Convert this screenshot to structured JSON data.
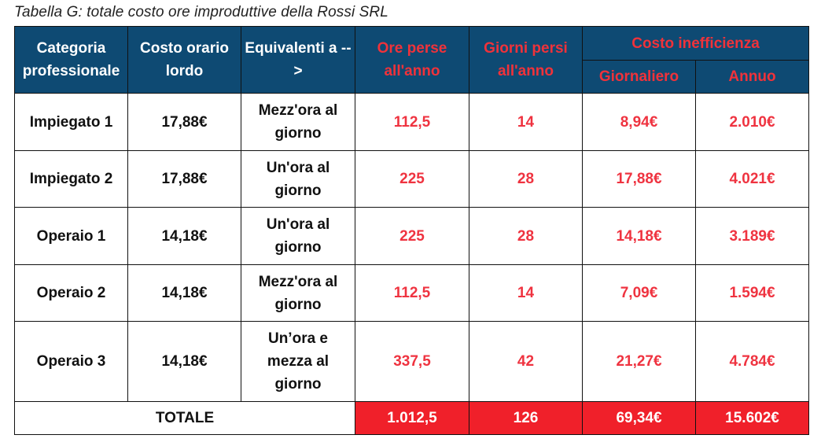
{
  "caption": "Tabella G: totale costo ore improduttive della Rossi SRL",
  "headers": {
    "categoria": "Categoria professionale",
    "costo_orario": "Costo orario lordo",
    "equivalenti": "Equivalenti a -->",
    "ore_perse": "Ore perse all'anno",
    "giorni_persi": "Giorni persi all'anno",
    "costo_inefficienza": "Costo inefficienza",
    "giornaliero": "Giornaliero",
    "annuo": "Annuo"
  },
  "rows": [
    {
      "categoria": "Impiegato 1",
      "costo_orario": "17,88€",
      "equivalenti": "Mezz'ora al giorno",
      "ore_perse": "112,5",
      "giorni_persi": "14",
      "giornaliero": "8,94€",
      "annuo": "2.010€"
    },
    {
      "categoria": "Impiegato 2",
      "costo_orario": "17,88€",
      "equivalenti": "Un'ora al giorno",
      "ore_perse": "225",
      "giorni_persi": "28",
      "giornaliero": "17,88€",
      "annuo": "4.021€"
    },
    {
      "categoria": "Operaio 1",
      "costo_orario": "14,18€",
      "equivalenti": "Un'ora al giorno",
      "ore_perse": "225",
      "giorni_persi": "28",
      "giornaliero": "14,18€",
      "annuo": "3.189€"
    },
    {
      "categoria": "Operaio 2",
      "costo_orario": "14,18€",
      "equivalenti": "Mezz'ora al giorno",
      "ore_perse": "112,5",
      "giorni_persi": "14",
      "giornaliero": "7,09€",
      "annuo": "1.594€"
    },
    {
      "categoria": "Operaio 3",
      "costo_orario": "14,18€",
      "equivalenti": "Un’ora e mezza al giorno",
      "ore_perse": "337,5",
      "giorni_persi": "42",
      "giornaliero": "21,27€",
      "annuo": "4.784€"
    }
  ],
  "totale": {
    "label": "TOTALE",
    "ore_perse": "1.012,5",
    "giorni_persi": "126",
    "giornaliero": "69,34€",
    "annuo": "15.602€"
  },
  "colors": {
    "header_bg": "#0e4a73",
    "header_text": "#ffffff",
    "accent_red_text": "#f0323a",
    "total_bg": "#f0202a"
  }
}
